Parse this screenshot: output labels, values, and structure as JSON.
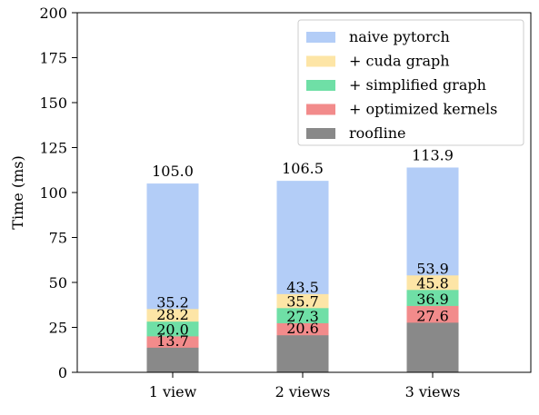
{
  "chart_data": {
    "type": "bar",
    "stacked": "overlay",
    "categories": [
      "1 view",
      "2 views",
      "3 views"
    ],
    "ylabel": "Time (ms)",
    "xlabel": "",
    "ylim": [
      0,
      200
    ],
    "yticks": [
      0,
      25,
      50,
      75,
      100,
      125,
      150,
      175,
      200
    ],
    "grid": false,
    "legend_position": "top-right",
    "series": [
      {
        "name": "naive pytorch",
        "color": "#b3cdf7",
        "values": [
          105.0,
          106.5,
          113.9
        ],
        "labels": [
          "105.0",
          "106.5",
          "113.9"
        ]
      },
      {
        "name": "+ cuda graph",
        "color": "#fde5a6",
        "values": [
          35.2,
          43.5,
          53.9
        ],
        "labels": [
          "35.2",
          "43.5",
          "53.9"
        ]
      },
      {
        "name": "+ simplified graph",
        "color": "#6fdfa6",
        "values": [
          28.2,
          35.7,
          45.8
        ],
        "labels": [
          "28.2",
          "35.7",
          "45.8"
        ]
      },
      {
        "name": "+ optimized kernels",
        "color": "#f28b8b",
        "values": [
          20.0,
          27.3,
          36.9
        ],
        "labels": [
          "20.0",
          "27.3",
          "36.9"
        ]
      },
      {
        "name": "roofline",
        "color": "#898989",
        "values": [
          13.7,
          20.6,
          27.6
        ],
        "labels": [
          "13.7",
          "20.6",
          "27.6"
        ]
      }
    ]
  }
}
